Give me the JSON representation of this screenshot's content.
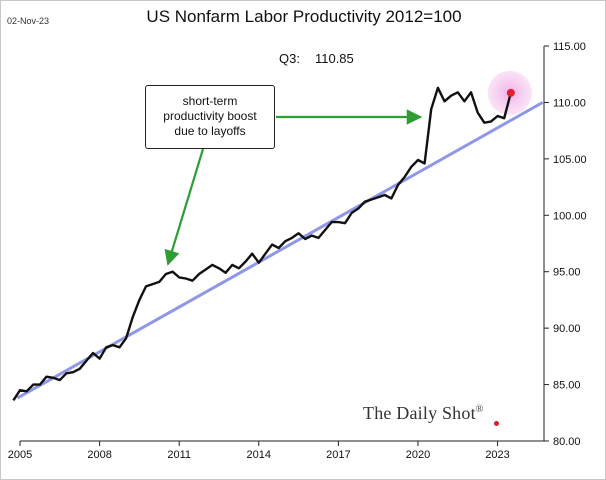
{
  "header": {
    "date": "02-Nov-23",
    "title": "US Nonfarm Labor Productivity 2012=100",
    "q3_label": "Q3:",
    "q3_value": "110.85"
  },
  "annotation": {
    "lines": [
      "short-term",
      "productivity boost",
      "due to layoffs"
    ]
  },
  "branding": {
    "text": "The Daily Shot",
    "mark": "®"
  },
  "colors": {
    "series": "#111111",
    "trend": "#8f98e6",
    "arrow": "#2e9e34",
    "highlight": "#f5c9ef",
    "last_point": "#e0202e"
  },
  "chart_data": {
    "type": "line",
    "title": "US Nonfarm Labor Productivity 2012=100",
    "xlabel": "",
    "ylabel": "",
    "xlim": [
      2005.0,
      2024.75
    ],
    "ylim": [
      80,
      115
    ],
    "y_axis_side": "right",
    "x_ticks": [
      {
        "value": 2005,
        "label": "2005"
      },
      {
        "value": 2008,
        "label": "2008"
      },
      {
        "value": 2011,
        "label": "2011"
      },
      {
        "value": 2014,
        "label": "2014"
      },
      {
        "value": 2017,
        "label": "2017"
      },
      {
        "value": 2020,
        "label": "2020"
      },
      {
        "value": 2023,
        "label": "2023"
      }
    ],
    "y_ticks": [
      {
        "value": 80,
        "label": "80.00"
      },
      {
        "value": 85,
        "label": "85.00"
      },
      {
        "value": 90,
        "label": "90.00"
      },
      {
        "value": 95,
        "label": "95.00"
      },
      {
        "value": 100,
        "label": "100.00"
      },
      {
        "value": 105,
        "label": "105.00"
      },
      {
        "value": 110,
        "label": "110.00"
      },
      {
        "value": 115,
        "label": "115.00"
      }
    ],
    "series": [
      {
        "name": "Nonfarm labor productivity",
        "x": [
          2004.75,
          2005.0,
          2005.25,
          2005.5,
          2005.75,
          2006.0,
          2006.25,
          2006.5,
          2006.75,
          2007.0,
          2007.25,
          2007.5,
          2007.75,
          2008.0,
          2008.25,
          2008.5,
          2008.75,
          2009.0,
          2009.25,
          2009.5,
          2009.75,
          2010.0,
          2010.25,
          2010.5,
          2010.75,
          2011.0,
          2011.25,
          2011.5,
          2011.75,
          2012.0,
          2012.25,
          2012.5,
          2012.75,
          2013.0,
          2013.25,
          2013.5,
          2013.75,
          2014.0,
          2014.25,
          2014.5,
          2014.75,
          2015.0,
          2015.25,
          2015.5,
          2015.75,
          2016.0,
          2016.25,
          2016.5,
          2016.75,
          2017.0,
          2017.25,
          2017.5,
          2017.75,
          2018.0,
          2018.25,
          2018.5,
          2018.75,
          2019.0,
          2019.25,
          2019.5,
          2019.75,
          2020.0,
          2020.25,
          2020.5,
          2020.75,
          2021.0,
          2021.25,
          2021.5,
          2021.75,
          2022.0,
          2022.25,
          2022.5,
          2022.75,
          2023.0,
          2023.25,
          2023.5
        ],
        "values": [
          83.6,
          84.5,
          84.4,
          85.0,
          85.0,
          85.7,
          85.6,
          85.4,
          86.0,
          86.1,
          86.4,
          87.1,
          87.8,
          87.3,
          88.3,
          88.5,
          88.3,
          89.1,
          91.0,
          92.5,
          93.7,
          93.9,
          94.1,
          94.8,
          95.0,
          94.5,
          94.4,
          94.2,
          94.8,
          95.2,
          95.6,
          95.3,
          94.9,
          95.6,
          95.3,
          95.9,
          96.6,
          95.8,
          96.6,
          97.4,
          97.1,
          97.7,
          98.0,
          98.4,
          97.9,
          98.2,
          98.0,
          98.7,
          99.4,
          99.4,
          99.3,
          100.2,
          100.6,
          101.2,
          101.4,
          101.6,
          101.8,
          101.5,
          102.7,
          103.4,
          104.3,
          104.9,
          104.6,
          109.4,
          111.3,
          110.1,
          110.6,
          110.9,
          110.1,
          110.9,
          109.1,
          108.2,
          108.3,
          108.8,
          108.6,
          110.85
        ]
      },
      {
        "name": "Trend",
        "x": [
          2004.9,
          2024.7
        ],
        "values": [
          83.8,
          110.0
        ]
      }
    ],
    "last_value": {
      "label": "Q3",
      "x": 2023.5,
      "value": 110.85
    },
    "annotations": [
      {
        "text": "short-term productivity boost due to layoffs",
        "arrows_to": [
          {
            "x": 2010.5,
            "value": 95.3
          },
          {
            "x": 2020.25,
            "value": 108.9
          }
        ]
      }
    ]
  }
}
